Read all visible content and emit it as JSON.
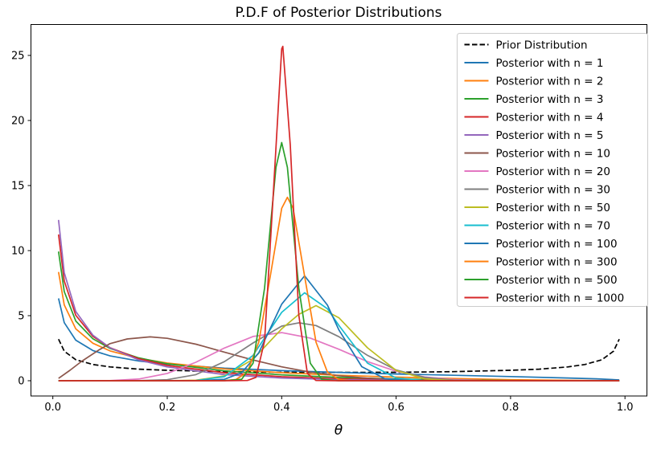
{
  "figure": {
    "title": "P.D.F of Posterior Distributions",
    "xlabel": "θ"
  },
  "chart_data": {
    "type": "line",
    "title": "P.D.F of Posterior Distributions",
    "xlabel": "θ",
    "ylabel": "",
    "xlim": [
      -0.04,
      1.04
    ],
    "ylim": [
      -1.2,
      27.4
    ],
    "x_tick_values": [
      0.0,
      0.2,
      0.4,
      0.6,
      0.8,
      1.0
    ],
    "x_tick_labels": [
      "0.0",
      "0.2",
      "0.4",
      "0.6",
      "0.8",
      "1.0"
    ],
    "y_tick_values": [
      0,
      5,
      10,
      15,
      20,
      25
    ],
    "y_tick_labels": [
      "0",
      "5",
      "10",
      "15",
      "20",
      "25"
    ],
    "grid": false,
    "legend_position": "upper right",
    "series": [
      {
        "name": "Prior Distribution",
        "color": "#000000",
        "style": "dashed",
        "points": [
          [
            0.01,
            3.2
          ],
          [
            0.02,
            2.27
          ],
          [
            0.04,
            1.62
          ],
          [
            0.07,
            1.25
          ],
          [
            0.1,
            1.06
          ],
          [
            0.15,
            0.89
          ],
          [
            0.2,
            0.8
          ],
          [
            0.3,
            0.7
          ],
          [
            0.4,
            0.65
          ],
          [
            0.5,
            0.64
          ],
          [
            0.6,
            0.65
          ],
          [
            0.7,
            0.7
          ],
          [
            0.8,
            0.8
          ],
          [
            0.85,
            0.89
          ],
          [
            0.9,
            1.06
          ],
          [
            0.93,
            1.25
          ],
          [
            0.96,
            1.62
          ],
          [
            0.98,
            2.27
          ],
          [
            0.99,
            3.2
          ]
        ]
      },
      {
        "name": "Posterior with n = 1",
        "color": "#1f77b4",
        "style": "solid",
        "points": [
          [
            0.01,
            6.33
          ],
          [
            0.02,
            4.46
          ],
          [
            0.04,
            3.12
          ],
          [
            0.07,
            2.32
          ],
          [
            0.1,
            1.91
          ],
          [
            0.15,
            1.52
          ],
          [
            0.2,
            1.27
          ],
          [
            0.3,
            0.97
          ],
          [
            0.4,
            0.78
          ],
          [
            0.5,
            0.64
          ],
          [
            0.6,
            0.52
          ],
          [
            0.7,
            0.42
          ],
          [
            0.8,
            0.32
          ],
          [
            0.9,
            0.21
          ],
          [
            0.95,
            0.15
          ],
          [
            0.99,
            0.06
          ]
        ]
      },
      {
        "name": "Posterior with n = 2",
        "color": "#ff7f0e",
        "style": "solid",
        "points": [
          [
            0.01,
            8.36
          ],
          [
            0.02,
            5.83
          ],
          [
            0.04,
            3.99
          ],
          [
            0.07,
            2.88
          ],
          [
            0.1,
            2.29
          ],
          [
            0.15,
            1.72
          ],
          [
            0.2,
            1.36
          ],
          [
            0.3,
            0.91
          ],
          [
            0.4,
            0.62
          ],
          [
            0.5,
            0.42
          ],
          [
            0.6,
            0.28
          ],
          [
            0.7,
            0.17
          ],
          [
            0.8,
            0.08
          ],
          [
            0.9,
            0.03
          ],
          [
            0.99,
            0.001
          ]
        ]
      },
      {
        "name": "Posterior with n = 3",
        "color": "#2ca02c",
        "style": "solid",
        "points": [
          [
            0.01,
            9.93
          ],
          [
            0.02,
            6.85
          ],
          [
            0.04,
            4.59
          ],
          [
            0.07,
            3.22
          ],
          [
            0.1,
            2.48
          ],
          [
            0.15,
            1.76
          ],
          [
            0.2,
            1.3
          ],
          [
            0.3,
            0.76
          ],
          [
            0.4,
            0.45
          ],
          [
            0.5,
            0.25
          ],
          [
            0.6,
            0.13
          ],
          [
            0.7,
            0.06
          ],
          [
            0.8,
            0.02
          ],
          [
            0.9,
            0.003
          ],
          [
            0.99,
            0
          ]
        ]
      },
      {
        "name": "Posterior with n = 4",
        "color": "#d62728",
        "style": "solid",
        "points": [
          [
            0.01,
            11.24
          ],
          [
            0.02,
            7.66
          ],
          [
            0.04,
            5.03
          ],
          [
            0.07,
            3.41
          ],
          [
            0.1,
            2.54
          ],
          [
            0.15,
            1.7
          ],
          [
            0.2,
            1.17
          ],
          [
            0.3,
            0.61
          ],
          [
            0.4,
            0.31
          ],
          [
            0.5,
            0.15
          ],
          [
            0.6,
            0.06
          ],
          [
            0.7,
            0.02
          ],
          [
            0.8,
            0.005
          ],
          [
            0.9,
            0.001
          ],
          [
            0.99,
            0
          ]
        ]
      },
      {
        "name": "Posterior with n = 5",
        "color": "#9467bd",
        "style": "solid",
        "points": [
          [
            0.01,
            12.36
          ],
          [
            0.02,
            8.3
          ],
          [
            0.04,
            5.33
          ],
          [
            0.07,
            3.5
          ],
          [
            0.1,
            2.53
          ],
          [
            0.15,
            1.6
          ],
          [
            0.2,
            1.06
          ],
          [
            0.3,
            0.47
          ],
          [
            0.4,
            0.21
          ],
          [
            0.5,
            0.08
          ],
          [
            0.6,
            0.03
          ],
          [
            0.7,
            0.007
          ],
          [
            0.8,
            0.001
          ],
          [
            0.99,
            0
          ]
        ]
      },
      {
        "name": "Posterior with n = 10",
        "color": "#8c564b",
        "style": "solid",
        "points": [
          [
            0.01,
            0.18
          ],
          [
            0.03,
            0.8
          ],
          [
            0.05,
            1.48
          ],
          [
            0.08,
            2.35
          ],
          [
            0.1,
            2.85
          ],
          [
            0.13,
            3.21
          ],
          [
            0.17,
            3.37
          ],
          [
            0.2,
            3.26
          ],
          [
            0.25,
            2.81
          ],
          [
            0.3,
            2.2
          ],
          [
            0.35,
            1.59
          ],
          [
            0.4,
            1.07
          ],
          [
            0.45,
            0.66
          ],
          [
            0.5,
            0.38
          ],
          [
            0.55,
            0.2
          ],
          [
            0.6,
            0.09
          ],
          [
            0.7,
            0.014
          ],
          [
            0.8,
            0.001
          ],
          [
            0.99,
            0
          ]
        ]
      },
      {
        "name": "Posterior with n = 20",
        "color": "#e377c2",
        "style": "solid",
        "points": [
          [
            0.01,
            0
          ],
          [
            0.05,
            0.003
          ],
          [
            0.1,
            0.012
          ],
          [
            0.15,
            0.13
          ],
          [
            0.2,
            0.56
          ],
          [
            0.25,
            1.42
          ],
          [
            0.3,
            2.51
          ],
          [
            0.35,
            3.4
          ],
          [
            0.4,
            3.7
          ],
          [
            0.45,
            3.28
          ],
          [
            0.5,
            2.42
          ],
          [
            0.55,
            1.47
          ],
          [
            0.6,
            0.73
          ],
          [
            0.65,
            0.29
          ],
          [
            0.7,
            0.09
          ],
          [
            0.75,
            0.02
          ],
          [
            0.8,
            0.002
          ],
          [
            0.99,
            0
          ]
        ]
      },
      {
        "name": "Posterior with n = 30",
        "color": "#7f7f7f",
        "style": "solid",
        "points": [
          [
            0.01,
            0
          ],
          [
            0.1,
            0
          ],
          [
            0.15,
            0.006
          ],
          [
            0.2,
            0.08
          ],
          [
            0.25,
            0.47
          ],
          [
            0.3,
            1.47
          ],
          [
            0.35,
            2.9
          ],
          [
            0.4,
            4.2
          ],
          [
            0.43,
            4.45
          ],
          [
            0.46,
            4.24
          ],
          [
            0.5,
            3.38
          ],
          [
            0.55,
            1.95
          ],
          [
            0.6,
            0.83
          ],
          [
            0.65,
            0.25
          ],
          [
            0.7,
            0.05
          ],
          [
            0.75,
            0.006
          ],
          [
            0.85,
            0
          ],
          [
            0.99,
            0
          ]
        ]
      },
      {
        "name": "Posterior with n = 50",
        "color": "#bcbd22",
        "style": "solid",
        "points": [
          [
            0.01,
            0
          ],
          [
            0.1,
            0
          ],
          [
            0.2,
            0.002
          ],
          [
            0.25,
            0.04
          ],
          [
            0.3,
            0.37
          ],
          [
            0.35,
            1.65
          ],
          [
            0.4,
            3.99
          ],
          [
            0.43,
            5.1
          ],
          [
            0.46,
            5.77
          ],
          [
            0.5,
            4.84
          ],
          [
            0.55,
            2.53
          ],
          [
            0.6,
            0.79
          ],
          [
            0.65,
            0.14
          ],
          [
            0.7,
            0.012
          ],
          [
            0.8,
            0
          ],
          [
            0.99,
            0
          ]
        ]
      },
      {
        "name": "Posterior with n = 70",
        "color": "#17becf",
        "style": "solid",
        "points": [
          [
            0.01,
            0
          ],
          [
            0.1,
            0
          ],
          [
            0.2,
            0
          ],
          [
            0.25,
            0.017
          ],
          [
            0.3,
            0.31
          ],
          [
            0.35,
            1.95
          ],
          [
            0.4,
            5.25
          ],
          [
            0.44,
            6.76
          ],
          [
            0.48,
            5.53
          ],
          [
            0.5,
            4.25
          ],
          [
            0.55,
            1.35
          ],
          [
            0.6,
            0.21
          ],
          [
            0.65,
            0.014
          ],
          [
            0.75,
            0
          ],
          [
            0.99,
            0
          ]
        ]
      },
      {
        "name": "Posterior with n = 100",
        "color": "#1f77b4",
        "style": "solid",
        "points": [
          [
            0.01,
            0
          ],
          [
            0.1,
            0
          ],
          [
            0.2,
            0
          ],
          [
            0.26,
            0.02
          ],
          [
            0.3,
            0.11
          ],
          [
            0.33,
            0.62
          ],
          [
            0.36,
            2.15
          ],
          [
            0.4,
            5.88
          ],
          [
            0.44,
            8.06
          ],
          [
            0.48,
            5.81
          ],
          [
            0.5,
            3.91
          ],
          [
            0.54,
            1.08
          ],
          [
            0.58,
            0.16
          ],
          [
            0.62,
            0.011
          ],
          [
            0.7,
            0
          ],
          [
            0.99,
            0
          ]
        ]
      },
      {
        "name": "Posterior with n = 300",
        "color": "#ff7f0e",
        "style": "solid",
        "points": [
          [
            0.01,
            0
          ],
          [
            0.1,
            0
          ],
          [
            0.2,
            0
          ],
          [
            0.3,
            0.01
          ],
          [
            0.32,
            0.09
          ],
          [
            0.34,
            0.66
          ],
          [
            0.36,
            2.96
          ],
          [
            0.38,
            8.03
          ],
          [
            0.4,
            13.25
          ],
          [
            0.41,
            14.1
          ],
          [
            0.42,
            13.25
          ],
          [
            0.44,
            8.03
          ],
          [
            0.46,
            2.96
          ],
          [
            0.48,
            0.66
          ],
          [
            0.5,
            0.09
          ],
          [
            0.52,
            0.01
          ],
          [
            0.6,
            0
          ],
          [
            0.8,
            0
          ],
          [
            0.99,
            0
          ]
        ]
      },
      {
        "name": "Posterior with n = 500",
        "color": "#2ca02c",
        "style": "solid",
        "points": [
          [
            0.01,
            0
          ],
          [
            0.1,
            0
          ],
          [
            0.2,
            0
          ],
          [
            0.3,
            0.004
          ],
          [
            0.33,
            0.11
          ],
          [
            0.35,
            1.34
          ],
          [
            0.37,
            7.12
          ],
          [
            0.39,
            16.4
          ],
          [
            0.4,
            18.3
          ],
          [
            0.41,
            16.4
          ],
          [
            0.43,
            7.12
          ],
          [
            0.45,
            1.34
          ],
          [
            0.47,
            0.11
          ],
          [
            0.5,
            0.002
          ],
          [
            0.6,
            0
          ],
          [
            0.8,
            0
          ],
          [
            0.99,
            0
          ]
        ]
      },
      {
        "name": "Posterior with n = 1000",
        "color": "#d62728",
        "style": "solid",
        "points": [
          [
            0.01,
            0
          ],
          [
            0.1,
            0
          ],
          [
            0.2,
            0
          ],
          [
            0.3,
            0
          ],
          [
            0.34,
            0.02
          ],
          [
            0.355,
            0.26
          ],
          [
            0.37,
            3.05
          ],
          [
            0.385,
            14.1
          ],
          [
            0.4,
            25.5
          ],
          [
            0.402,
            25.7
          ],
          [
            0.415,
            18.1
          ],
          [
            0.43,
            5.03
          ],
          [
            0.445,
            0.55
          ],
          [
            0.46,
            0.02
          ],
          [
            0.5,
            0
          ],
          [
            0.6,
            0
          ],
          [
            0.7,
            0
          ],
          [
            0.8,
            0
          ],
          [
            0.9,
            0
          ],
          [
            0.99,
            0
          ]
        ]
      }
    ]
  }
}
